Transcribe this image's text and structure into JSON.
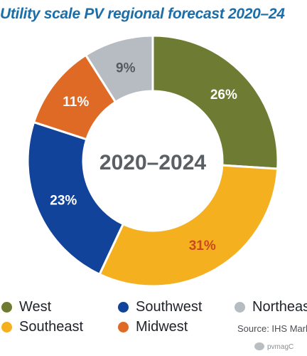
{
  "title": "Utility scale PV regional forecast 2020–24",
  "colors": {
    "title": "#1b6ea8",
    "center_text": "#5a5f63",
    "label_default": "#ffffff",
    "label_southeast": "#c94a1c",
    "label_northeast": "#555a5e"
  },
  "chart_data": {
    "type": "pie",
    "variant": "donut",
    "center_label": "2020–2024",
    "categories": [
      "West",
      "Southeast",
      "Southwest",
      "Midwest",
      "Northeast"
    ],
    "values": [
      26,
      31,
      23,
      11,
      9
    ],
    "value_labels": [
      "26%",
      "31%",
      "23%",
      "11%",
      "9%"
    ],
    "slice_colors": [
      "#6e7b32",
      "#f5b020",
      "#12439b",
      "#df6a25",
      "#b6bcc2"
    ],
    "legend_position": "bottom"
  },
  "legend": {
    "items": [
      {
        "label": "West",
        "color": "#6e7b32"
      },
      {
        "label": "Southwest",
        "color": "#12439b"
      },
      {
        "label": "Northeast",
        "color": "#b6bcc2"
      },
      {
        "label": "Southeast",
        "color": "#f5b020"
      },
      {
        "label": "Midwest",
        "color": "#df6a25"
      }
    ]
  },
  "source": "Source: IHS Markit",
  "watermark": "pvmagC"
}
